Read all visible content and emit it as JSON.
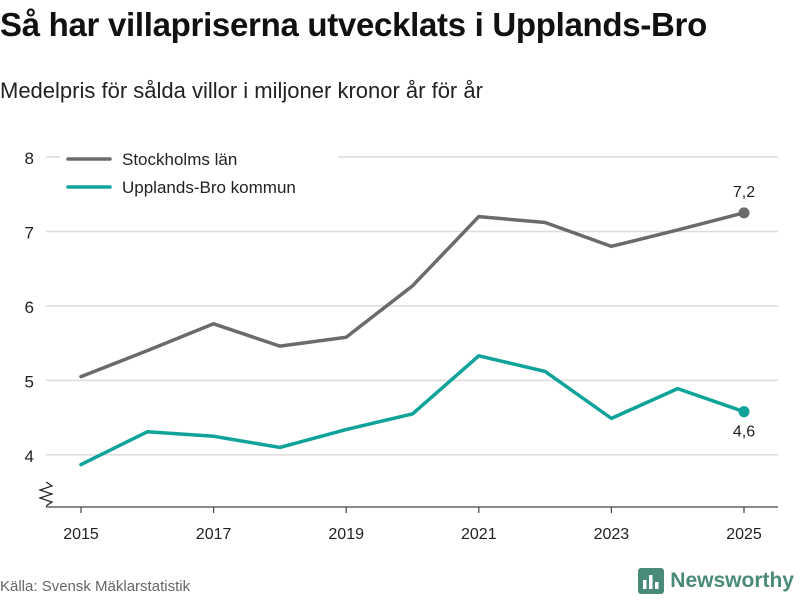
{
  "title": "Så har villapriserna utvecklats i Upplands-Bro",
  "subtitle": "Medelpris för sålda villor i miljoner kronor år för år",
  "source": "Källa: Svensk Mäklarstatistik",
  "brand": {
    "name": "Newsworthy",
    "color": "#4a8a78",
    "logo_icon": "bar-chart-icon"
  },
  "chart_data": {
    "type": "line",
    "x": [
      2015,
      2016,
      2017,
      2018,
      2019,
      2020,
      2021,
      2022,
      2023,
      2024,
      2025
    ],
    "x_ticks": [
      "2015",
      "2017",
      "2019",
      "2021",
      "2023",
      "2025"
    ],
    "y_ticks": [
      "4",
      "5",
      "6",
      "7",
      "8"
    ],
    "ylim": [
      3.3,
      8
    ],
    "axis_break": true,
    "grid": true,
    "legend_position": "top-left",
    "series": [
      {
        "name": "Stockholms län",
        "color": "#6b6b6b",
        "values": [
          5.05,
          5.4,
          5.76,
          5.46,
          5.58,
          6.27,
          7.2,
          7.12,
          6.8,
          7.02,
          7.25
        ],
        "end_label": "7,2"
      },
      {
        "name": "Upplands-Bro kommun",
        "color": "#0fa39a",
        "values": [
          3.87,
          4.31,
          4.25,
          4.1,
          4.34,
          4.55,
          5.33,
          5.12,
          4.49,
          4.89,
          4.58
        ],
        "end_label": "4,6"
      }
    ]
  }
}
